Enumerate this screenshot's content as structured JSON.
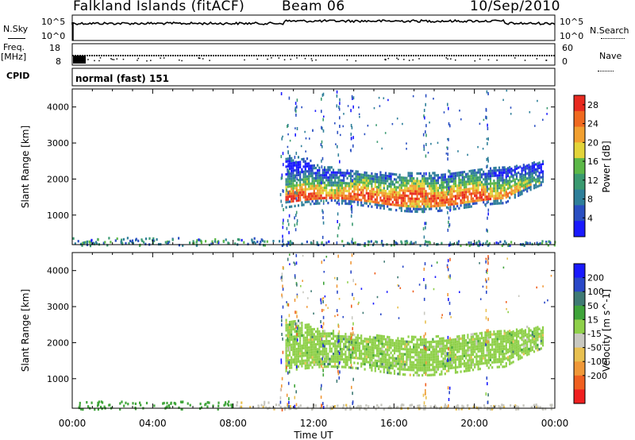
{
  "header": {
    "station": "Falkland Islands (fitACF)",
    "beam": "Beam 06",
    "date": "10/Sep/2010"
  },
  "left_labels": {
    "nsky": "N.Sky",
    "freq": "Freq.",
    "mhz": "[MHz]",
    "cpid": "CPID"
  },
  "right_labels": {
    "nsearch": "N.Search",
    "nave": "Nave"
  },
  "cpid_text": "normal (fast) 151",
  "noise_panel": {
    "left_ticks": [
      "10^5",
      "10^0"
    ],
    "right_ticks": [
      "10^5",
      "10^0"
    ]
  },
  "freq_panel": {
    "left_ticks": [
      "18",
      "8"
    ],
    "right_ticks": [
      "60",
      "0"
    ]
  },
  "colors": {
    "power": [
      "#1a1aff",
      "#2a4fc2",
      "#2f7f9a",
      "#3a9a70",
      "#5cb848",
      "#e3d43a",
      "#f2a030",
      "#f06a20",
      "#e82a20"
    ],
    "velocity": [
      "#1a1aff",
      "#2a48c8",
      "#3f7a74",
      "#3fa43a",
      "#8fd04a",
      "#c8c8c0",
      "#e8c050",
      "#f09838",
      "#f06020",
      "#f02020"
    ]
  },
  "chart_data": [
    {
      "type": "heatmap",
      "title": "",
      "ylabel": "Slant Range [km]",
      "xlabel": "",
      "xlim": [
        "00:00",
        "24:00"
      ],
      "ylim": [
        180,
        4500
      ],
      "x_ticks": [
        "00:00",
        "04:00",
        "08:00",
        "12:00",
        "16:00",
        "20:00",
        "00:00"
      ],
      "y_ticks": [
        1000,
        2000,
        3000,
        4000
      ],
      "colorbar": {
        "label": "Power [dB]",
        "ticks": [
          4,
          8,
          12,
          16,
          20,
          24,
          28
        ],
        "range": [
          0,
          30
        ]
      },
      "features": [
        {
          "start_ut": 10.6,
          "end_ut": 23.4,
          "range_km": [
            1200,
            2700
          ],
          "peak_range_km": 1500,
          "power_db": [
            8,
            30
          ]
        },
        {
          "start_ut": 0,
          "end_ut": 24,
          "range_km": [
            180,
            400
          ],
          "power_db": [
            4,
            12
          ]
        }
      ]
    },
    {
      "type": "heatmap",
      "title": "",
      "ylabel": "Slant Range [km]",
      "xlabel": "Time UT",
      "xlim": [
        "00:00",
        "24:00"
      ],
      "ylim": [
        180,
        4500
      ],
      "x_ticks": [
        "00:00",
        "04:00",
        "08:00",
        "12:00",
        "16:00",
        "20:00",
        "00:00"
      ],
      "y_ticks": [
        1000,
        2000,
        3000,
        4000
      ],
      "colorbar": {
        "label": "Velocity [m s^-1]",
        "ticks": [
          200,
          100,
          50,
          15,
          -15,
          -50,
          -100,
          -200
        ],
        "range": [
          -250,
          250
        ]
      },
      "features": [
        {
          "start_ut": 10.6,
          "end_ut": 23.4,
          "range_km": [
            1200,
            2700
          ],
          "velocity_ms": [
            -15,
            15
          ]
        }
      ]
    }
  ]
}
